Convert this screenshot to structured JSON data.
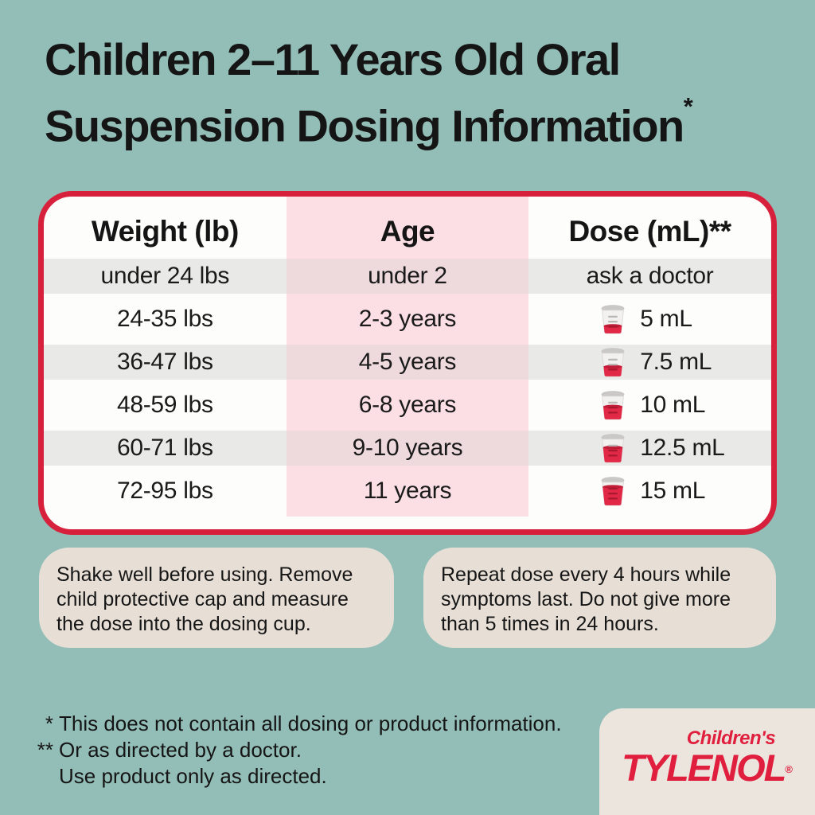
{
  "title": {
    "line1": "Children 2–11 Years Old Oral",
    "line2": "Suspension Dosing Information",
    "footnote_marker": "*"
  },
  "table": {
    "headers": [
      {
        "label": "Weight (lb)"
      },
      {
        "label": "Age"
      },
      {
        "label": "Dose (mL)**"
      }
    ],
    "rows": [
      {
        "weight": "under 24 lbs",
        "age": "under 2",
        "dose": "ask a doctor",
        "cup_fill": null,
        "shaded": true
      },
      {
        "weight": "24-35 lbs",
        "age": "2-3 years",
        "dose": "5 mL",
        "cup_fill": 0.32,
        "shaded": false
      },
      {
        "weight": "36-47 lbs",
        "age": "4-5 years",
        "dose": "7.5 mL",
        "cup_fill": 0.42,
        "shaded": true
      },
      {
        "weight": "48-59 lbs",
        "age": "6-8 years",
        "dose": "10 mL",
        "cup_fill": 0.55,
        "shaded": false
      },
      {
        "weight": "60-71 lbs",
        "age": "9-10 years",
        "dose": "12.5 mL",
        "cup_fill": 0.64,
        "shaded": true
      },
      {
        "weight": "72-95 lbs",
        "age": "11 years",
        "dose": "15 mL",
        "cup_fill": 0.8,
        "shaded": false
      }
    ]
  },
  "notes": [
    {
      "text": "Shake well before using. Remove child protective cap and measure the dose into the dosing cup."
    },
    {
      "text": "Repeat dose every 4 hours while symptoms last. Do not give more than 5 times in 24 hours."
    }
  ],
  "footnotes": [
    {
      "marker": "*",
      "text": "This does not contain all dosing or product information."
    },
    {
      "marker": "**",
      "text": "Or as directed by a doctor."
    },
    {
      "marker": "",
      "text": "Use product only as directed."
    }
  ],
  "brand": {
    "line1": "Children's",
    "line2": "TYLENOL",
    "registered": "®"
  },
  "colors": {
    "background": "#93BEB7",
    "table_border_red": "#D7213C",
    "age_column_pink": "#FBDFE4",
    "age_column_pink_shaded": "#EEDADD",
    "shaded_row_gray": "#E9E9E7",
    "note_box_beige": "#E7DFD6",
    "brand_card_beige": "#ECE5DD",
    "brand_red": "#E01F3E",
    "text_black": "#151515",
    "cup_liquid_red": "#E22847",
    "cup_liquid_dark_red": "#C11D39",
    "cup_rim_gray": "#C9C8C6"
  }
}
